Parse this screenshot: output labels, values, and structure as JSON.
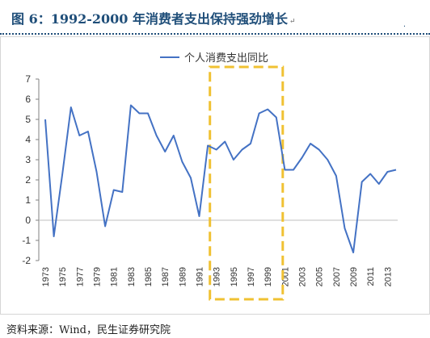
{
  "figure": {
    "title": "图 6：1992-2000 年消费者支出保持强劲增长",
    "title_mark": "↵",
    "corner_mark": "·",
    "source": "资料来源：Wind，民生证券研究院",
    "colors": {
      "title": "#1f4e79",
      "line": "#4472c4",
      "highlight": "#f0c132",
      "axis": "#808080"
    }
  },
  "chart_data": {
    "type": "line",
    "legend": "top-center",
    "grid": false,
    "ylim": [
      -2,
      7
    ],
    "yticks": [
      -2,
      -1,
      0,
      1,
      2,
      3,
      4,
      5,
      6,
      7
    ],
    "xlim": [
      1973,
      2014
    ],
    "xticks": [
      1973,
      1975,
      1977,
      1979,
      1981,
      1983,
      1985,
      1987,
      1989,
      1991,
      1993,
      1995,
      1997,
      1999,
      2001,
      2003,
      2005,
      2007,
      2009,
      2011,
      2013
    ],
    "x": [
      1973,
      1974,
      1975,
      1976,
      1977,
      1978,
      1979,
      1980,
      1981,
      1982,
      1983,
      1984,
      1985,
      1986,
      1987,
      1988,
      1989,
      1990,
      1991,
      1992,
      1993,
      1994,
      1995,
      1996,
      1997,
      1998,
      1999,
      2000,
      2001,
      2002,
      2003,
      2004,
      2005,
      2006,
      2007,
      2008,
      2009,
      2010,
      2011,
      2012,
      2013,
      2014
    ],
    "series": [
      {
        "name": "个人消费支出同比",
        "values": [
          5.0,
          -0.8,
          2.3,
          5.6,
          4.2,
          4.4,
          2.4,
          -0.3,
          1.5,
          1.4,
          5.7,
          5.3,
          5.3,
          4.2,
          3.4,
          4.2,
          2.9,
          2.1,
          0.2,
          3.7,
          3.5,
          3.9,
          3.0,
          3.5,
          3.8,
          5.3,
          5.5,
          5.1,
          2.5,
          2.5,
          3.1,
          3.8,
          3.5,
          3.0,
          2.2,
          -0.4,
          -1.6,
          1.9,
          2.3,
          1.8,
          2.4,
          2.5
        ]
      }
    ],
    "highlight_range": [
      1993,
      2000
    ]
  }
}
